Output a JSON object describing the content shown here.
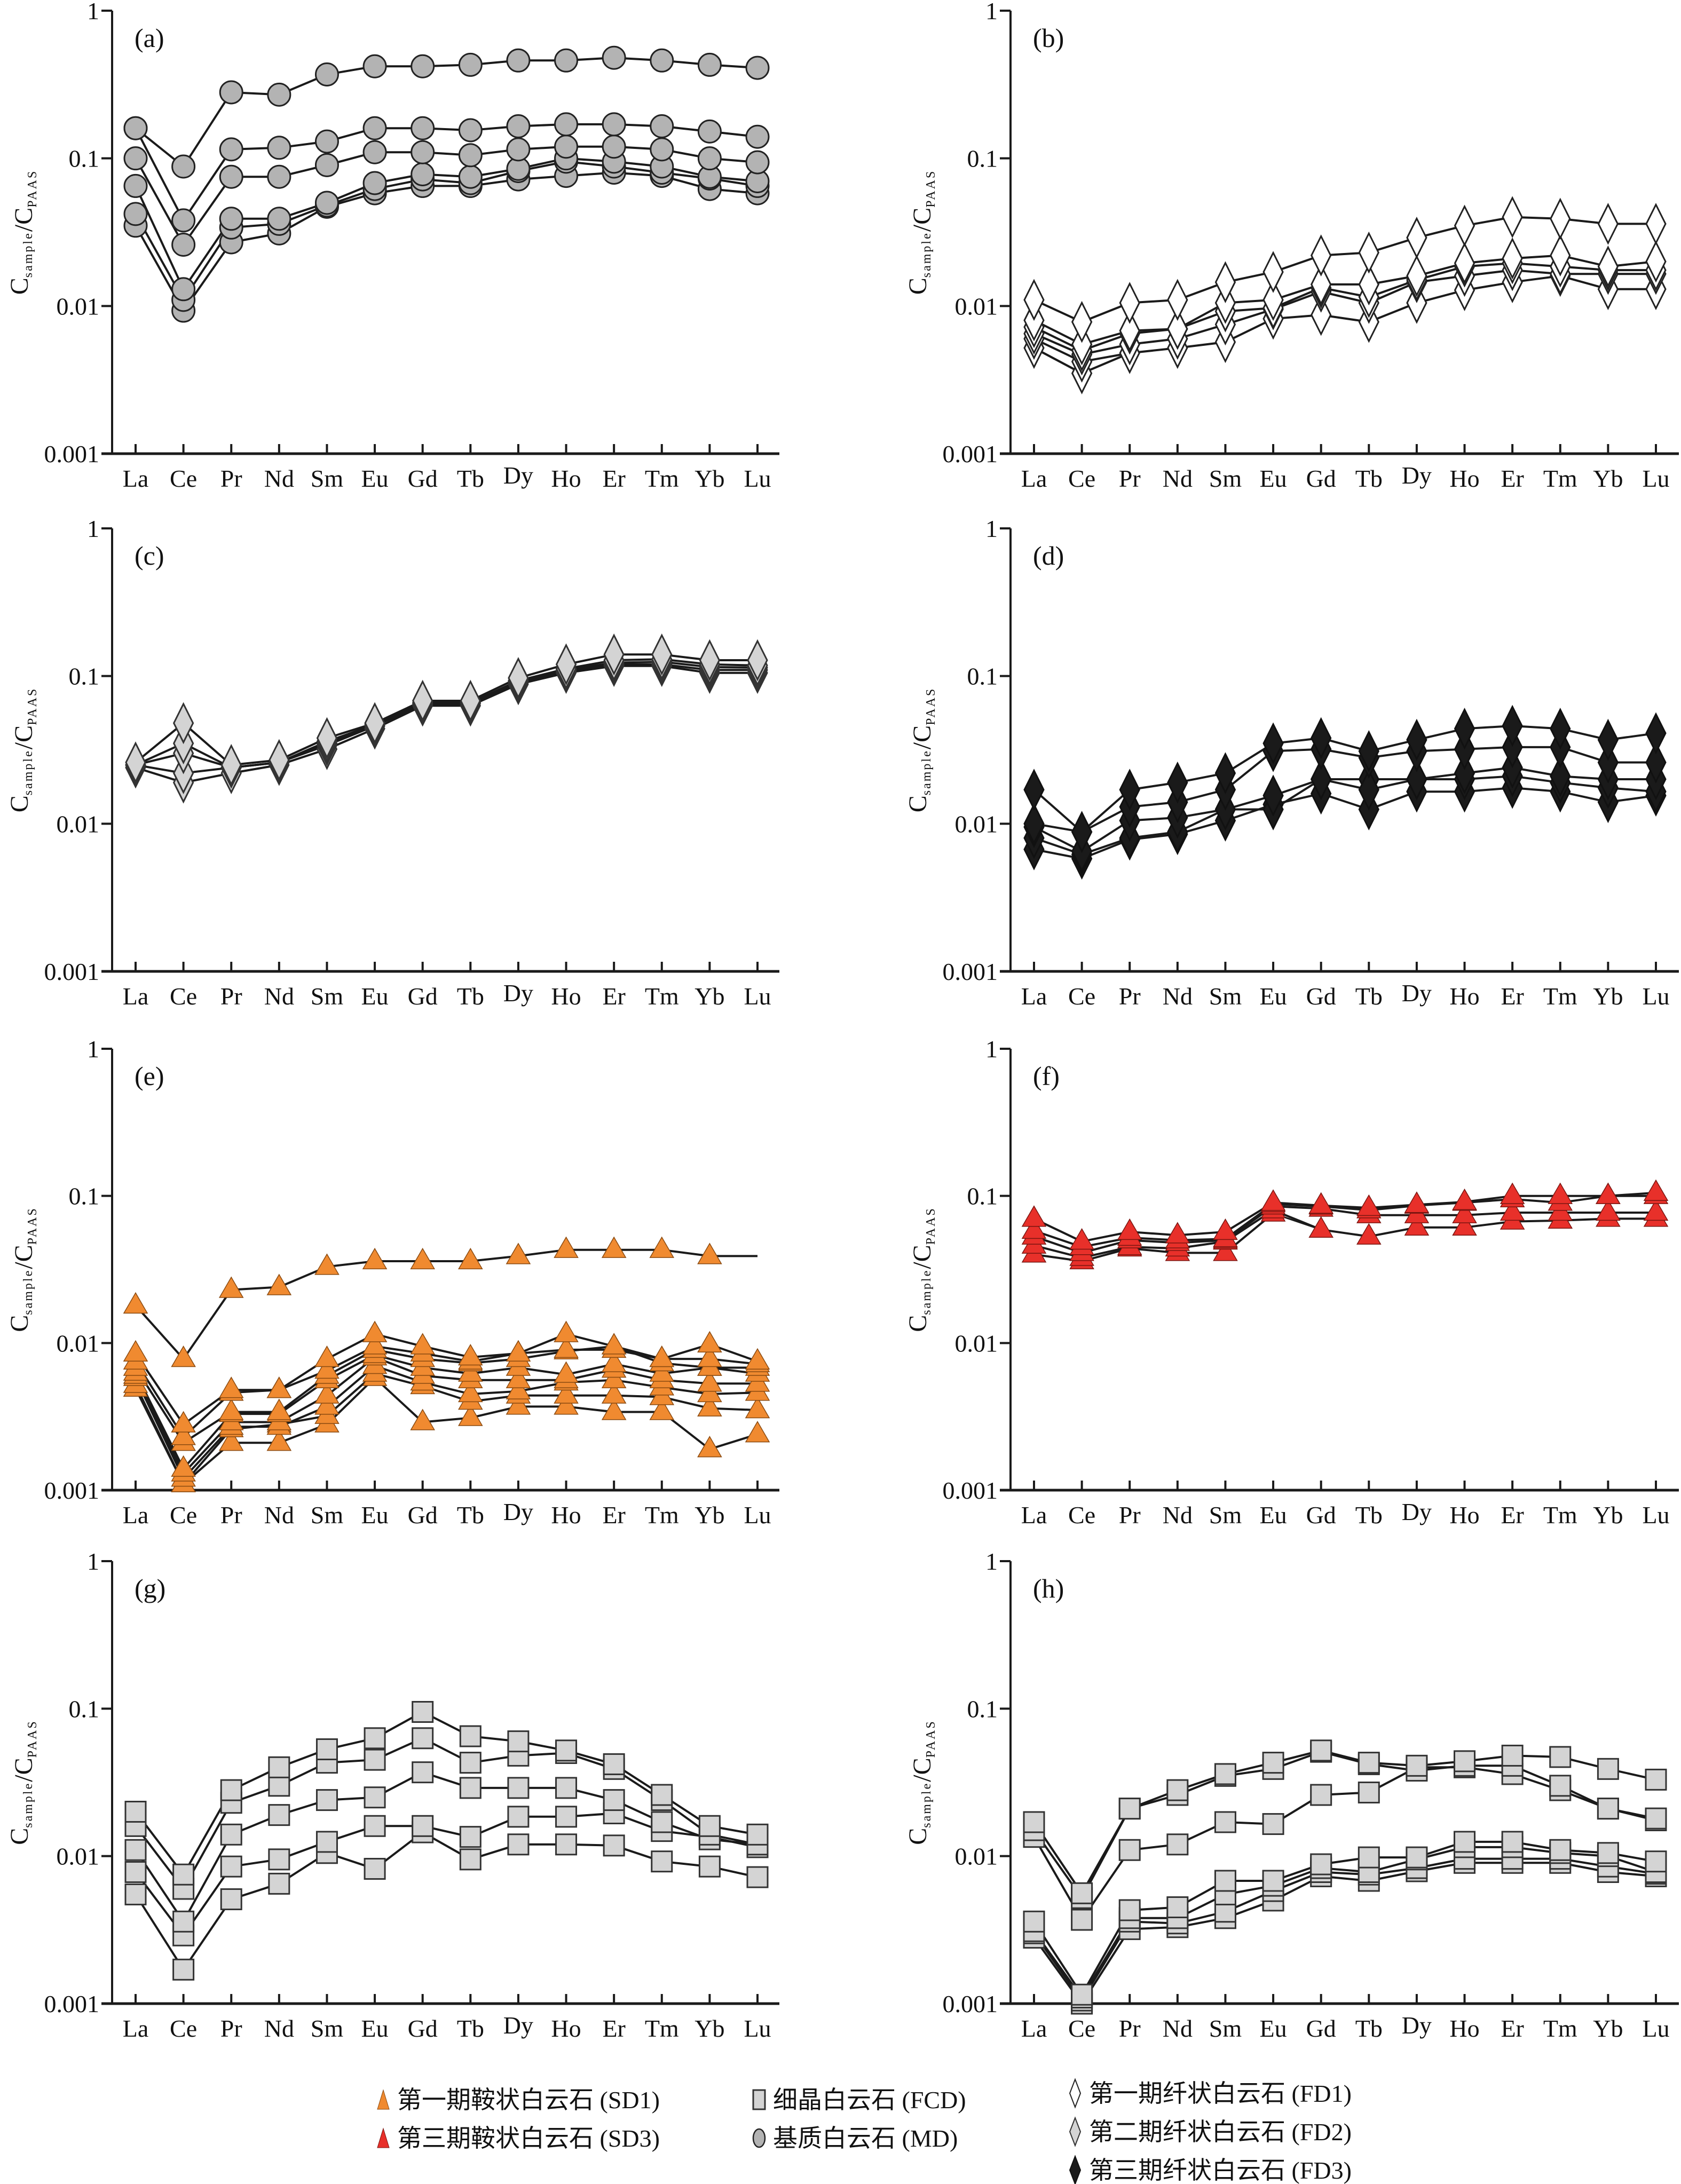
{
  "chart_data": {
    "type": "line",
    "categories": [
      "La",
      "Ce",
      "Pr",
      "Nd",
      "Sm",
      "Eu",
      "Gd",
      "Tb",
      "Dy",
      "Ho",
      "Er",
      "Tm",
      "Yb",
      "Lu"
    ],
    "yscale": "log",
    "ylim": [
      0.001,
      1
    ],
    "yticks": [
      "1",
      "0.1",
      "0.01",
      "0.001"
    ],
    "ylabel": {
      "main": "C",
      "sub1": "sample",
      "slash": "/",
      "main2": "C",
      "sub2": "PAAS"
    },
    "styles": {
      "MD": {
        "marker": "circle",
        "fill": "#b3b3b3",
        "stroke": "#222222"
      },
      "FD1": {
        "marker": "diamond",
        "fill": "#ffffff",
        "stroke": "#222222"
      },
      "FD2": {
        "marker": "diamond",
        "fill": "#d4d4d4",
        "stroke": "#333333"
      },
      "FD3": {
        "marker": "diamond",
        "fill": "#1a1a1a",
        "stroke": "#111111"
      },
      "SD1": {
        "marker": "triangle",
        "fill": "#f08a30",
        "stroke": "#8a4a10"
      },
      "SD3": {
        "marker": "triangle",
        "fill": "#e8302a",
        "stroke": "#7a1510"
      },
      "FCD": {
        "marker": "square",
        "fill": "#d4d4d4",
        "stroke": "#333333"
      }
    },
    "panels": [
      {
        "label": "(a)",
        "group": "MD",
        "series": [
          [
            null,
            null,
            0.28,
            0.27,
            0.37,
            0.42,
            0.42,
            0.43,
            0.46,
            0.46,
            0.48,
            0.46,
            0.43,
            0.41
          ],
          [
            0.16,
            0.088,
            null,
            null,
            null,
            null,
            null,
            null,
            null,
            null,
            null,
            null,
            null,
            null
          ],
          [
            0.16,
            0.038,
            0.115,
            0.118,
            0.13,
            0.16,
            0.16,
            0.155,
            0.165,
            0.17,
            0.17,
            0.165,
            0.152,
            0.14
          ],
          [
            0.1,
            0.026,
            0.075,
            0.075,
            0.09,
            0.11,
            0.11,
            0.105,
            0.115,
            0.12,
            0.12,
            0.115,
            0.1,
            0.094
          ],
          [
            0.065,
            0.013,
            0.039,
            0.039,
            0.05,
            0.068,
            0.078,
            0.075,
            0.085,
            0.1,
            0.095,
            0.088,
            0.075,
            0.07
          ],
          [
            0.042,
            0.011,
            0.034,
            0.036,
            0.048,
            0.062,
            0.072,
            0.068,
            0.082,
            0.095,
            0.088,
            0.08,
            0.073,
            0.065
          ],
          [
            0.035,
            0.0093,
            0.027,
            0.031,
            0.047,
            0.058,
            0.065,
            0.065,
            0.072,
            0.076,
            0.08,
            0.076,
            0.062,
            0.058
          ]
        ]
      },
      {
        "label": "(b)",
        "group": "FD1",
        "series": [
          [
            0.011,
            0.0078,
            0.0105,
            0.011,
            0.0145,
            0.017,
            0.022,
            0.023,
            0.029,
            0.035,
            0.04,
            0.039,
            0.036,
            0.036
          ],
          [
            0.008,
            0.0055,
            0.0068,
            0.007,
            0.0105,
            0.011,
            0.014,
            0.014,
            0.016,
            0.0195,
            0.021,
            0.022,
            0.0185,
            0.02
          ],
          [
            0.0072,
            0.005,
            0.0065,
            0.007,
            0.0092,
            0.0097,
            0.0133,
            0.0115,
            0.015,
            0.0185,
            0.0195,
            0.0185,
            0.0175,
            0.0175
          ],
          [
            0.0065,
            0.0047,
            0.0055,
            0.006,
            0.0075,
            0.0095,
            0.0125,
            0.0105,
            0.0145,
            0.016,
            0.0175,
            0.0165,
            0.0165,
            0.0165
          ],
          [
            0.006,
            0.0042,
            0.0048,
            0.0052,
            0.0057,
            0.0082,
            0.0087,
            0.0078,
            0.0105,
            0.0128,
            0.0145,
            0.016,
            0.013,
            0.013
          ],
          [
            0.0052,
            0.0035,
            null,
            null,
            null,
            null,
            null,
            null,
            null,
            null,
            null,
            null,
            null,
            null
          ]
        ]
      },
      {
        "label": "(c)",
        "group": "FD2",
        "series": [
          [
            0.026,
            0.048,
            0.025,
            0.027,
            0.038,
            0.048,
            0.068,
            0.068,
            0.097,
            0.12,
            0.14,
            0.14,
            0.128,
            0.128
          ],
          [
            0.025,
            0.035,
            0.024,
            0.026,
            0.036,
            0.047,
            0.066,
            0.066,
            0.093,
            0.112,
            0.128,
            0.13,
            0.12,
            0.118
          ],
          [
            0.025,
            0.03,
            0.024,
            0.026,
            0.035,
            0.046,
            0.065,
            0.066,
            0.092,
            0.11,
            0.123,
            0.125,
            0.115,
            0.114
          ],
          [
            0.025,
            0.022,
            0.024,
            0.026,
            0.034,
            0.046,
            0.064,
            0.065,
            0.09,
            0.108,
            0.12,
            0.12,
            0.11,
            0.11
          ],
          [
            0.024,
            0.019,
            0.022,
            0.025,
            0.032,
            0.044,
            0.063,
            0.063,
            0.088,
            0.105,
            0.117,
            0.117,
            0.105,
            0.105
          ]
        ]
      },
      {
        "label": "(d)",
        "group": "FD3",
        "series": [
          [
            0.017,
            0.0088,
            0.017,
            0.019,
            0.022,
            0.035,
            0.038,
            0.031,
            0.037,
            0.044,
            0.046,
            0.044,
            0.037,
            0.041
          ],
          [
            0.01,
            0.0088,
            0.013,
            0.014,
            0.017,
            0.031,
            0.032,
            0.028,
            0.031,
            0.032,
            0.033,
            0.033,
            0.026,
            0.026
          ],
          [
            0.0095,
            0.0065,
            0.0105,
            0.011,
            0.0125,
            0.0155,
            0.02,
            0.017,
            0.02,
            0.022,
            0.024,
            0.021,
            0.02,
            0.02
          ],
          [
            0.008,
            0.0062,
            0.008,
            0.0088,
            0.0125,
            0.0125,
            0.02,
            0.02,
            0.02,
            0.02,
            0.021,
            0.019,
            0.0175,
            0.0165
          ],
          [
            0.0067,
            0.0058,
            0.0078,
            0.0085,
            0.0105,
            0.0135,
            0.016,
            0.0125,
            0.0165,
            0.0165,
            0.0175,
            0.0165,
            0.014,
            0.0155
          ]
        ]
      },
      {
        "label": "(e)",
        "group": "SD1",
        "series": [
          [
            0.018,
            0.0078,
            0.023,
            0.024,
            0.033,
            0.036,
            0.036,
            0.036,
            0.039,
            0.043,
            0.043,
            0.043,
            0.039,
            0.039
          ],
          [
            0.0085,
            0.0028,
            0.0048,
            0.0048,
            0.0078,
            0.0115,
            0.0095,
            0.008,
            0.0085,
            0.0115,
            0.0095,
            0.0078,
            0.0098,
            0.0075
          ],
          [
            0.0075,
            0.0023,
            0.0046,
            0.0048,
            0.0065,
            0.0095,
            0.0085,
            0.0075,
            0.0085,
            0.009,
            0.009,
            0.0078,
            0.0078,
            0.0072
          ],
          [
            0.0068,
            0.0021,
            0.0034,
            0.0034,
            0.006,
            0.009,
            0.0078,
            0.0073,
            0.0078,
            0.0088,
            0.0095,
            0.0073,
            0.0068,
            0.0068
          ],
          [
            0.0063,
            0.0014,
            0.0033,
            0.0033,
            0.0056,
            0.0083,
            0.0068,
            0.0062,
            0.0068,
            0.0061,
            0.0072,
            0.0062,
            0.0068,
            0.0062
          ],
          [
            0.006,
            0.0013,
            0.0029,
            0.0029,
            0.0044,
            0.008,
            0.006,
            0.0056,
            0.0056,
            0.0056,
            0.0066,
            0.0056,
            0.0053,
            0.0053
          ],
          [
            0.0058,
            0.0012,
            0.0027,
            0.0027,
            0.0037,
            0.007,
            0.0054,
            0.0045,
            0.0047,
            0.0054,
            0.0056,
            0.005,
            0.0045,
            0.0046
          ],
          [
            0.0052,
            0.0011,
            0.0026,
            0.0028,
            0.0032,
            0.0062,
            0.0051,
            0.004,
            0.0044,
            0.0044,
            0.0044,
            0.0043,
            0.0036,
            0.0035
          ],
          [
            0.0049,
            0.0011,
            0.0021,
            0.0021,
            0.0028,
            0.0058,
            0.0029,
            0.0031,
            0.0037,
            0.0037,
            0.0034,
            0.0034,
            0.0019,
            0.0024
          ]
        ]
      },
      {
        "label": "(f)",
        "group": "SD3",
        "series": [
          [
            0.07,
            0.049,
            0.057,
            0.054,
            0.057,
            0.09,
            0.086,
            0.083,
            0.087,
            0.091,
            0.1,
            0.1,
            0.1,
            0.105
          ],
          [
            0.058,
            0.045,
            0.052,
            0.05,
            0.051,
            0.088,
            0.085,
            0.08,
            0.086,
            0.09,
            0.095,
            0.09,
            0.1,
            0.1
          ],
          [
            0.053,
            0.041,
            0.05,
            0.048,
            0.05,
            0.085,
            0.082,
            0.074,
            0.074,
            0.074,
            0.077,
            0.077,
            0.077,
            0.077
          ],
          [
            0.046,
            0.038,
            0.045,
            0.044,
            0.049,
            0.08,
            0.059,
            0.053,
            0.061,
            0.061,
            0.067,
            0.068,
            0.07,
            0.07
          ],
          [
            0.04,
            0.036,
            0.044,
            0.041,
            0.041,
            0.076,
            null,
            null,
            null,
            null,
            null,
            null,
            null,
            null
          ]
        ]
      },
      {
        "label": "(g)",
        "group": "FCD",
        "series": [
          [
            0.02,
            0.0075,
            0.028,
            0.04,
            0.053,
            0.063,
            0.095,
            0.065,
            0.06,
            0.052,
            0.042,
            0.026,
            0.016,
            0.014
          ],
          [
            0.016,
            0.006,
            0.023,
            0.03,
            0.043,
            0.045,
            0.063,
            0.043,
            0.048,
            0.05,
            0.039,
            0.024,
            0.014,
            0.012
          ],
          [
            0.011,
            0.0036,
            0.014,
            0.019,
            0.024,
            0.025,
            0.037,
            0.029,
            0.029,
            0.029,
            0.024,
            0.017,
            0.013,
            0.012
          ],
          [
            0.0078,
            0.0029,
            0.0085,
            0.0095,
            0.0125,
            0.016,
            0.016,
            0.0135,
            0.0185,
            0.0185,
            0.0195,
            0.0148,
            0.0135,
            0.0115
          ],
          [
            0.0055,
            0.0017,
            0.0051,
            0.0065,
            0.0105,
            0.0082,
            0.0145,
            0.0095,
            0.012,
            0.012,
            0.0118,
            0.0092,
            0.0085,
            0.0072
          ]
        ]
      },
      {
        "label": "(h)",
        "group": "FCD",
        "series": [
          [
            0.017,
            0.0056,
            0.021,
            0.028,
            0.036,
            0.043,
            0.052,
            0.043,
            0.041,
            0.044,
            0.048,
            0.047,
            0.039,
            0.033
          ],
          [
            0.015,
            0.0052,
            0.021,
            0.026,
            0.035,
            0.039,
            0.051,
            0.042,
            0.038,
            0.041,
            0.041,
            0.03,
            0.021,
            0.018
          ],
          [
            0.0135,
            0.0037,
            0.011,
            0.012,
            0.017,
            0.0165,
            0.026,
            0.027,
            0.04,
            0.04,
            0.036,
            0.028,
            0.021,
            0.0175
          ],
          [
            0.0036,
            0.00115,
            0.0043,
            0.0045,
            0.0068,
            0.0068,
            0.0088,
            0.0098,
            0.0098,
            0.0125,
            0.0125,
            0.011,
            0.0105,
            0.0092
          ],
          [
            0.0031,
            0.0011,
            0.0038,
            0.0038,
            0.0055,
            0.0063,
            0.0083,
            0.0078,
            0.0095,
            0.0115,
            0.0115,
            0.0105,
            0.01,
            0.0078
          ],
          [
            0.003,
            0.00105,
            0.0036,
            0.0035,
            0.0042,
            0.0058,
            0.0078,
            0.0075,
            0.0083,
            0.0096,
            0.0096,
            0.0096,
            0.0085,
            0.0076
          ],
          [
            0.0028,
            0.001,
            0.0032,
            0.0033,
            0.0038,
            0.005,
            0.0073,
            0.0068,
            0.0079,
            0.009,
            0.009,
            0.009,
            0.0078,
            0.0073
          ]
        ]
      }
    ],
    "legend": [
      {
        "key": "SD1",
        "text": "第一期鞍状白云石 (SD1)"
      },
      {
        "key": "SD3",
        "text": "第三期鞍状白云石 (SD3)"
      },
      {
        "key": "FCD",
        "text": "细晶白云石 (FCD)"
      },
      {
        "key": "MD",
        "text": "基质白云石 (MD)"
      },
      {
        "key": "FD1",
        "text": "第一期纤状白云石 (FD1)"
      },
      {
        "key": "FD2",
        "text": "第二期纤状白云石 (FD2)"
      },
      {
        "key": "FD3",
        "text": "第三期纤状白云石 (FD3)"
      }
    ],
    "legend_position": "bottom"
  }
}
